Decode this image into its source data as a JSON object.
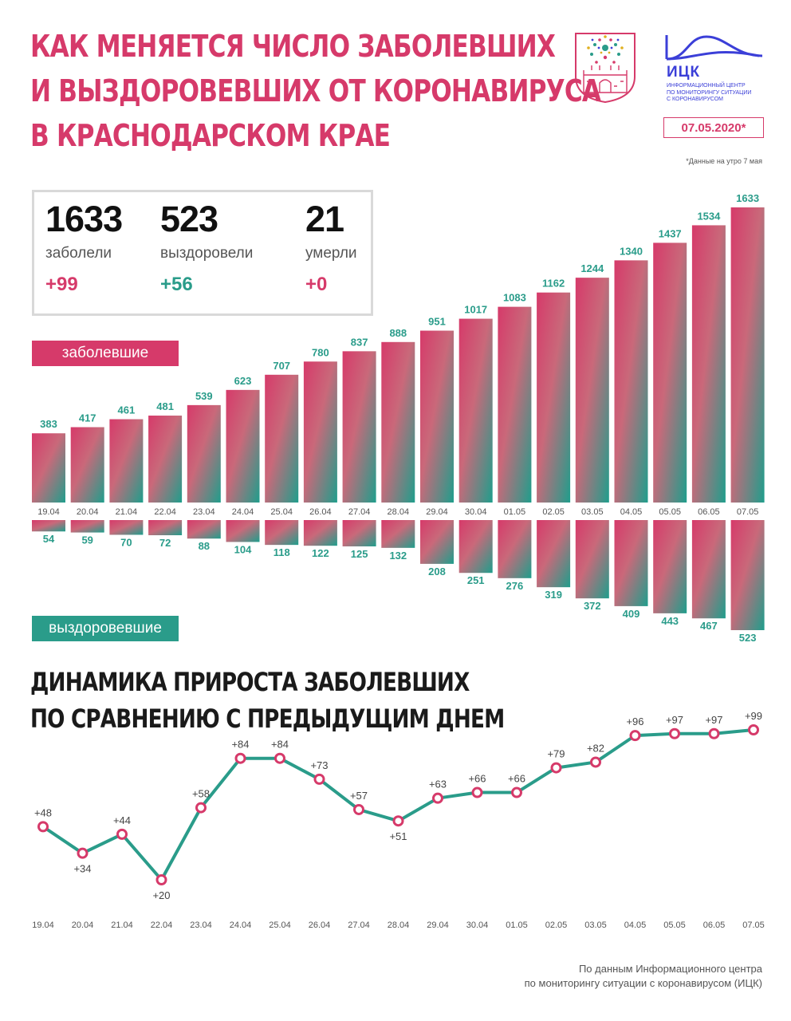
{
  "header": {
    "title_lines": [
      "КАК МЕНЯЕТСЯ ЧИСЛО ЗАБОЛЕВШИХ",
      "И ВЫЗДОРОВЕВШИХ ОТ КОРОНАВИРУСА",
      "В КРАСНОДАРСКОМ КРАЕ"
    ],
    "logo_abbr": "ИЦК",
    "logo_sub_lines": [
      "ИНФОРМАЦИОННЫЙ ЦЕНТР",
      "ПО МОНИТОРИНГУ СИТУАЦИИ",
      "С КОРОНАВИРУСОМ"
    ],
    "date": "07.05.2020*",
    "data_note": "*Данные на утро 7 мая"
  },
  "summary": {
    "sick": {
      "value": "1633",
      "label": "заболели",
      "change": "+99"
    },
    "recovered": {
      "value": "523",
      "label": "выздоровели",
      "change": "+56"
    },
    "died": {
      "value": "21",
      "label": "умерли",
      "change": "+0"
    }
  },
  "labels": {
    "sick_pill": "заболевшие",
    "recovered_pill": "выздоровевшие"
  },
  "colors": {
    "accent_pink": "#d63a6a",
    "accent_teal": "#2a9c8a",
    "logo_blue": "#3b3fd8"
  },
  "chart_data": [
    {
      "type": "bar",
      "categories": [
        "19.04",
        "20.04",
        "21.04",
        "22.04",
        "23.04",
        "24.04",
        "25.04",
        "26.04",
        "27.04",
        "28.04",
        "29.04",
        "30.04",
        "01.05",
        "02.05",
        "03.05",
        "04.05",
        "05.05",
        "06.05",
        "07.05"
      ],
      "series": [
        {
          "name": "заболевшие",
          "values": [
            383,
            417,
            461,
            481,
            539,
            623,
            707,
            780,
            837,
            888,
            951,
            1017,
            1083,
            1162,
            1244,
            1340,
            1437,
            1534,
            1633
          ]
        },
        {
          "name": "выздоровевшие",
          "values": [
            54,
            59,
            70,
            72,
            88,
            104,
            118,
            122,
            125,
            132,
            208,
            251,
            276,
            319,
            372,
            409,
            443,
            467,
            523
          ]
        }
      ]
    },
    {
      "type": "line",
      "title_lines": [
        "ДИНАМИКА ПРИРОСТА ЗАБОЛЕВШИХ",
        "ПО СРАВНЕНИЮ С ПРЕДЫДУЩИМ ДНЕМ"
      ],
      "categories": [
        "19.04",
        "20.04",
        "21.04",
        "22.04",
        "23.04",
        "24.04",
        "25.04",
        "26.04",
        "27.04",
        "28.04",
        "29.04",
        "30.04",
        "01.05",
        "02.05",
        "03.05",
        "04.05",
        "05.05",
        "06.05",
        "07.05"
      ],
      "values": [
        48,
        34,
        44,
        20,
        58,
        84,
        84,
        73,
        57,
        51,
        63,
        66,
        66,
        79,
        82,
        96,
        97,
        97,
        99
      ],
      "point_labels": [
        "+48",
        "+34",
        "+44",
        "+20",
        "+58",
        "+84",
        "+84",
        "+73",
        "+57",
        "+51",
        "+63",
        "+66",
        "+66",
        "+79",
        "+82",
        "+96",
        "+97",
        "+97",
        "+99"
      ]
    }
  ],
  "footer": {
    "source_lines": [
      "По данным Информационного центра",
      "по мониторингу ситуации с коронавирусом (ИЦК)"
    ]
  }
}
